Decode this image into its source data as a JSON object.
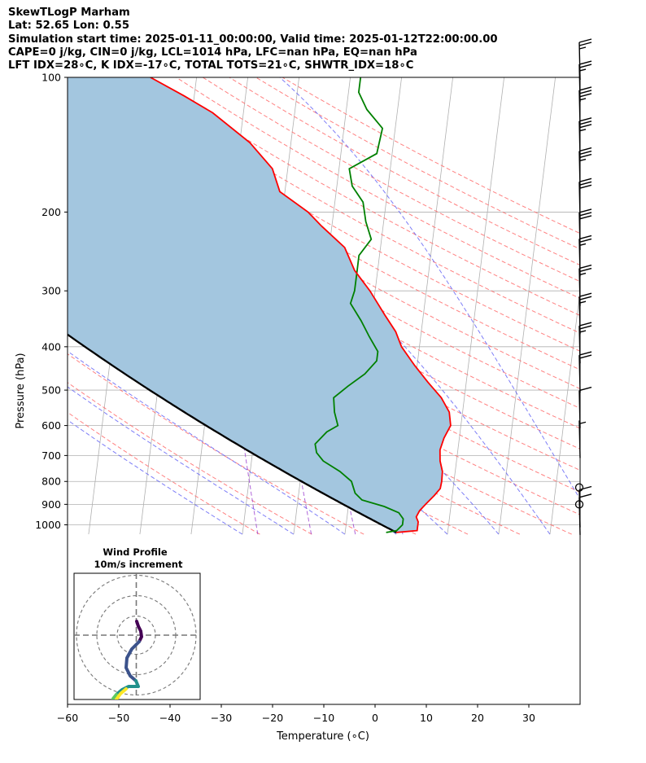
{
  "header": {
    "line1": "SkewTLogP Marham",
    "line2": "Lat: 52.65   Lon: 0.55",
    "line3": "Simulation start time: 2025-01-11_00:00:00, Valid time: 2025-01-12T22:00:00.00",
    "line4": "CAPE=0 j/kg, CIN=0 j/kg, LCL=1014 hPa, LFC=nan hPa, EQ=nan hPa",
    "line5": "LFT IDX=28∘C, K IDX=-17∘C, TOTAL TOTS=21∘C, SHWTR_IDX=18∘C"
  },
  "chart_data": [
    {
      "type": "skew-t log-p",
      "xlabel": "Temperature (∘C)",
      "ylabel": "Pressure (hPa)",
      "xlim": [
        -60,
        40
      ],
      "ylim": [
        1050,
        100
      ],
      "yscale": "log",
      "xticks": [
        -60,
        -50,
        -40,
        -30,
        -20,
        -10,
        0,
        10,
        20,
        30
      ],
      "xtick_labels": [
        "−60",
        "−50",
        "−40",
        "−30",
        "−20",
        "−10",
        "0",
        "10",
        "20",
        "30"
      ],
      "yticks": [
        100,
        200,
        300,
        400,
        500,
        600,
        700,
        800,
        900,
        1000
      ],
      "grid": true,
      "colors": {
        "temperature": "#ff0000",
        "dewpoint": "#008000",
        "parcel": "#000000",
        "cape_fill": "#a3c6df",
        "dry_adiabat": "#ff6b6b",
        "moist_adiabat": "#5c5cf5",
        "mixing_ratio": "#9b3fcf",
        "isotherm": "#b0b0b0"
      },
      "series": [
        {
          "key": "temperature",
          "points": [
            [
              1040,
              0
            ],
            [
              1030,
              4
            ],
            [
              1015,
              4
            ],
            [
              1000,
              4
            ],
            [
              985,
              4
            ],
            [
              960,
              3.5
            ],
            [
              930,
              4
            ],
            [
              900,
              5
            ],
            [
              860,
              6.5
            ],
            [
              830,
              7.5
            ],
            [
              800,
              7.6
            ],
            [
              760,
              7.5
            ],
            [
              720,
              6.8
            ],
            [
              680,
              6.5
            ],
            [
              640,
              7
            ],
            [
              600,
              8
            ],
            [
              560,
              7.4
            ],
            [
              520,
              5.5
            ],
            [
              480,
              2.5
            ],
            [
              440,
              -0.5
            ],
            [
              400,
              -3.5
            ],
            [
              370,
              -5
            ],
            [
              340,
              -7.5
            ],
            [
              300,
              -11
            ],
            [
              270,
              -14.5
            ],
            [
              240,
              -17
            ],
            [
              215,
              -22
            ],
            [
              200,
              -25
            ],
            [
              180,
              -31
            ],
            [
              160,
              -33
            ],
            [
              140,
              -38
            ],
            [
              120,
              -46
            ],
            [
              110,
              -52
            ],
            [
              100,
              -59
            ]
          ]
        },
        {
          "key": "dewpoint",
          "points": [
            [
              1040,
              -2
            ],
            [
              1030,
              0
            ],
            [
              1015,
              0.5
            ],
            [
              1000,
              1
            ],
            [
              970,
              1
            ],
            [
              940,
              0
            ],
            [
              910,
              -3
            ],
            [
              880,
              -7.5
            ],
            [
              850,
              -9
            ],
            [
              800,
              -10
            ],
            [
              760,
              -12.5
            ],
            [
              720,
              -16
            ],
            [
              690,
              -17.5
            ],
            [
              660,
              -18
            ],
            [
              620,
              -16
            ],
            [
              600,
              -14
            ],
            [
              560,
              -15
            ],
            [
              520,
              -15.5
            ],
            [
              490,
              -13
            ],
            [
              460,
              -10
            ],
            [
              430,
              -8
            ],
            [
              410,
              -8
            ],
            [
              380,
              -10
            ],
            [
              350,
              -12
            ],
            [
              320,
              -14.5
            ],
            [
              300,
              -14
            ],
            [
              270,
              -14
            ],
            [
              250,
              -14
            ],
            [
              230,
              -12
            ],
            [
              210,
              -13.5
            ],
            [
              190,
              -14.5
            ],
            [
              175,
              -17
            ],
            [
              160,
              -18
            ],
            [
              148,
              -13
            ],
            [
              130,
              -12.5
            ],
            [
              118,
              -16
            ],
            [
              108,
              -18
            ],
            [
              100,
              -18
            ]
          ]
        }
      ],
      "wind_barbs": [
        {
          "p": 1040,
          "speed_kt": 10
        },
        {
          "p": 1000,
          "speed_kt": 10
        },
        {
          "p": 900,
          "speed_kt": 0
        },
        {
          "p": 825,
          "speed_kt": 0
        },
        {
          "p": 700,
          "speed_kt": 5
        },
        {
          "p": 600,
          "speed_kt": 10
        },
        {
          "p": 500,
          "speed_kt": 20
        },
        {
          "p": 430,
          "speed_kt": 25
        },
        {
          "p": 370,
          "speed_kt": 25
        },
        {
          "p": 320,
          "speed_kt": 25
        },
        {
          "p": 275,
          "speed_kt": 25
        },
        {
          "p": 240,
          "speed_kt": 30
        },
        {
          "p": 205,
          "speed_kt": 30
        },
        {
          "p": 175,
          "speed_kt": 35
        },
        {
          "p": 150,
          "speed_kt": 35
        },
        {
          "p": 128,
          "speed_kt": 35
        },
        {
          "p": 112,
          "speed_kt": 25
        },
        {
          "p": 100,
          "speed_kt": 25
        }
      ]
    },
    {
      "type": "hodograph",
      "title": "Wind Profile",
      "subtitle": "10m/s increment",
      "rings_ms": [
        10,
        20,
        30
      ]
    }
  ]
}
